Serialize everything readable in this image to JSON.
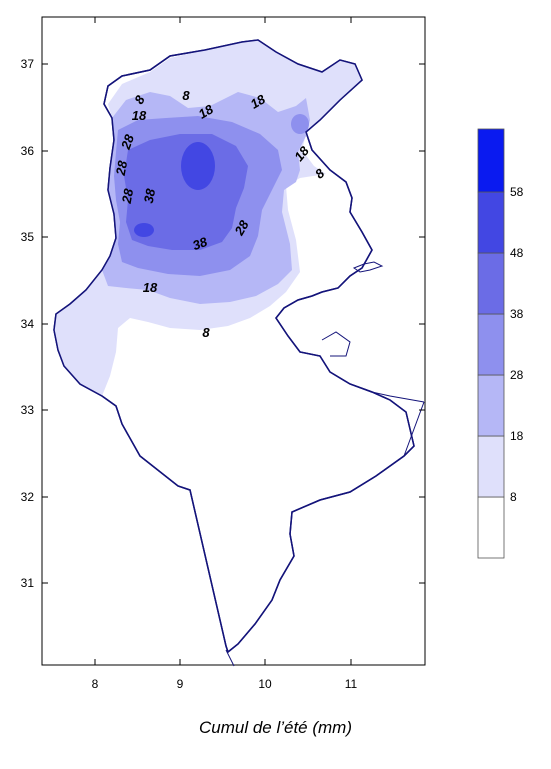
{
  "caption": "Cumul de l’été (mm)",
  "x_ticks": [
    "8",
    "9",
    "10",
    "11"
  ],
  "y_ticks": [
    "37",
    "36",
    "35",
    "34",
    "33",
    "32",
    "31"
  ],
  "legend": {
    "labels": [
      "8",
      "18",
      "28",
      "38",
      "48",
      "58"
    ],
    "colors": [
      "#ffffff",
      "#dfe0fb",
      "#b5b7f6",
      "#8e90ee",
      "#6b6ce6",
      "#4247e3",
      "#0a1af0"
    ]
  },
  "contour_labels": [
    {
      "value": "8"
    },
    {
      "value": "8"
    },
    {
      "value": "18"
    },
    {
      "value": "18"
    },
    {
      "value": "28"
    },
    {
      "value": "28"
    },
    {
      "value": "28"
    },
    {
      "value": "38"
    },
    {
      "value": "38"
    },
    {
      "value": "28"
    },
    {
      "value": "18"
    },
    {
      "value": "18"
    },
    {
      "value": "8"
    },
    {
      "value": "8"
    }
  ]
}
